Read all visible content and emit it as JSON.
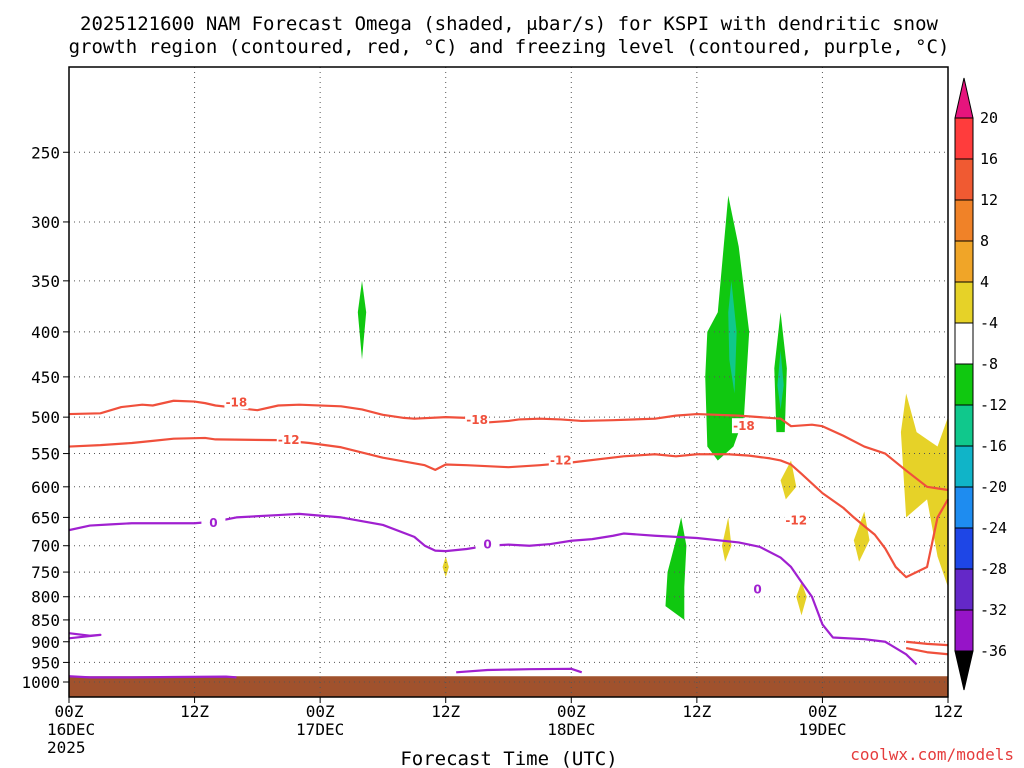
{
  "title": {
    "line1": "2025121600 NAM Forecast Omega (shaded, μbar/s) for KSPI with dendritic snow",
    "line2": "growth region (contoured, red, °C) and freezing level (contoured, purple, °C)"
  },
  "xlabel": "Forecast Time (UTC)",
  "credit": "coolwx.com/models",
  "colors": {
    "dgz": "#f0503c",
    "freezing": "#a020d0",
    "terrain": "#a0522d",
    "grid": "#555555"
  },
  "chart_data": {
    "type": "contour",
    "y_scale": "log-pressure",
    "y_axis": {
      "range": [
        1040,
        200
      ],
      "ticks": [
        "250",
        "300",
        "350",
        "400",
        "450",
        "500",
        "550",
        "600",
        "650",
        "700",
        "750",
        "800",
        "850",
        "900",
        "950",
        "1000"
      ]
    },
    "x_axis": {
      "range": [
        0,
        84
      ],
      "ticks": [
        {
          "label": "00Z",
          "sub": "16DEC",
          "sub2": "2025"
        },
        {
          "label": "12Z",
          "sub": "",
          "sub2": ""
        },
        {
          "label": "00Z",
          "sub": "17DEC",
          "sub2": ""
        },
        {
          "label": "12Z",
          "sub": "",
          "sub2": ""
        },
        {
          "label": "00Z",
          "sub": "18DEC",
          "sub2": ""
        },
        {
          "label": "12Z",
          "sub": "",
          "sub2": ""
        },
        {
          "label": "00Z",
          "sub": "19DEC",
          "sub2": ""
        },
        {
          "label": "12Z",
          "sub": "",
          "sub2": ""
        }
      ]
    },
    "colorbar": {
      "ticks": [
        "20",
        "16",
        "12",
        "8",
        "4",
        "-4",
        "-8",
        "-12",
        "-16",
        "-20",
        "-24",
        "-28",
        "-32",
        "-36"
      ],
      "bins": [
        {
          "color": "#ff3c3c"
        },
        {
          "color": "#f05a32"
        },
        {
          "color": "#f08228"
        },
        {
          "color": "#f0a528"
        },
        {
          "color": "#e6d228"
        },
        {
          "color": "#ffffff"
        },
        {
          "color": "#10c810"
        },
        {
          "color": "#10c88c"
        },
        {
          "color": "#10b4c8"
        },
        {
          "color": "#1e8cf0"
        },
        {
          "color": "#1e46e6"
        },
        {
          "color": "#6428c8"
        },
        {
          "color": "#9614c8"
        },
        {
          "color": "#a0a0a0"
        }
      ],
      "top_arrow": "#e6147d",
      "bottom_arrow": "#000000"
    },
    "contours": [
      {
        "name": "-18",
        "color": "#f0503c",
        "points": [
          [
            0,
            496
          ],
          [
            3,
            495
          ],
          [
            5,
            487
          ],
          [
            7,
            484
          ],
          [
            8,
            485
          ],
          [
            10,
            479
          ],
          [
            12,
            480
          ],
          [
            13,
            482
          ],
          [
            14,
            485
          ],
          [
            18,
            491
          ],
          [
            20,
            485
          ],
          [
            22,
            484
          ],
          [
            26,
            486
          ],
          [
            28,
            490
          ],
          [
            30,
            497
          ],
          [
            32,
            501
          ],
          [
            33,
            502
          ],
          [
            36,
            500
          ],
          [
            38,
            501
          ],
          [
            40,
            507
          ],
          [
            42,
            505
          ],
          [
            43,
            503
          ],
          [
            45,
            502
          ],
          [
            47,
            503
          ],
          [
            49,
            505
          ],
          [
            52,
            504
          ],
          [
            56,
            502
          ],
          [
            58,
            498
          ],
          [
            60,
            496
          ],
          [
            64,
            498
          ],
          [
            66,
            500
          ],
          [
            68,
            502
          ],
          [
            69,
            512
          ],
          [
            71,
            510
          ],
          [
            72,
            512
          ],
          [
            74,
            525
          ],
          [
            76,
            540
          ],
          [
            78,
            550
          ],
          [
            80,
            575
          ],
          [
            82,
            600
          ],
          [
            84,
            605
          ]
        ]
      },
      {
        "name": "-12",
        "color": "#f0503c",
        "points": [
          [
            0,
            540
          ],
          [
            3,
            538
          ],
          [
            6,
            535
          ],
          [
            8,
            532
          ],
          [
            10,
            529
          ],
          [
            13,
            528
          ],
          [
            14,
            530
          ],
          [
            20,
            531
          ],
          [
            23,
            535
          ],
          [
            26,
            541
          ],
          [
            30,
            556
          ],
          [
            34,
            567
          ],
          [
            35,
            574
          ],
          [
            36,
            566
          ],
          [
            38,
            567
          ],
          [
            42,
            570
          ],
          [
            45,
            567
          ],
          [
            48,
            563
          ],
          [
            53,
            554
          ],
          [
            56,
            551
          ],
          [
            58,
            554
          ],
          [
            60,
            551
          ],
          [
            63,
            551
          ],
          [
            65,
            553
          ],
          [
            67,
            557
          ],
          [
            68,
            560
          ],
          [
            69,
            566
          ],
          [
            70,
            580
          ],
          [
            72,
            610
          ],
          [
            74,
            634
          ],
          [
            75,
            650
          ],
          [
            76,
            665
          ],
          [
            77,
            680
          ],
          [
            78,
            705
          ],
          [
            79,
            740
          ],
          [
            80,
            760
          ],
          [
            82,
            740
          ],
          [
            83,
            650
          ],
          [
            84,
            620
          ]
        ]
      },
      {
        "name": "0",
        "color": "#a020d0",
        "points": [
          [
            0,
            672
          ],
          [
            2,
            664
          ],
          [
            4,
            662
          ],
          [
            6,
            660
          ],
          [
            8,
            660
          ],
          [
            12,
            660
          ],
          [
            14,
            657
          ],
          [
            16,
            650
          ],
          [
            20,
            646
          ],
          [
            22,
            644
          ],
          [
            26,
            650
          ],
          [
            30,
            663
          ],
          [
            33,
            684
          ],
          [
            34,
            700
          ],
          [
            35,
            709
          ],
          [
            36,
            710
          ],
          [
            38,
            706
          ],
          [
            40,
            700
          ],
          [
            42,
            698
          ],
          [
            44,
            700
          ],
          [
            46,
            697
          ],
          [
            48,
            691
          ],
          [
            50,
            688
          ],
          [
            52,
            682
          ],
          [
            53,
            678
          ],
          [
            56,
            682
          ],
          [
            60,
            686
          ],
          [
            64,
            694
          ],
          [
            66,
            702
          ],
          [
            68,
            722
          ],
          [
            69,
            740
          ],
          [
            70,
            770
          ],
          [
            71,
            800
          ],
          [
            72,
            860
          ],
          [
            73,
            890
          ],
          [
            76,
            894
          ],
          [
            78,
            900
          ],
          [
            80,
            930
          ],
          [
            81,
            955
          ]
        ]
      },
      {
        "name": "0-lower",
        "color": "#a020d0",
        "points": [
          [
            0,
            880
          ],
          [
            2,
            886
          ],
          [
            3,
            884
          ],
          [
            0,
            892
          ]
        ]
      },
      {
        "name": "0-base-left",
        "color": "#a020d0",
        "points": [
          [
            0,
            985
          ],
          [
            2,
            988
          ],
          [
            6,
            988
          ],
          [
            10,
            987
          ],
          [
            15,
            986
          ],
          [
            16,
            988
          ]
        ]
      },
      {
        "name": "0-base-mid",
        "color": "#a020d0",
        "points": [
          [
            37,
            975
          ],
          [
            40,
            969
          ],
          [
            44,
            967
          ],
          [
            48,
            966
          ],
          [
            49,
            975
          ]
        ]
      },
      {
        "name": "-12-low-right",
        "color": "#f0503c",
        "points": [
          [
            80,
            900
          ],
          [
            82,
            905
          ],
          [
            84,
            908
          ]
        ]
      },
      {
        "name": "-12-low-right2",
        "color": "#f0503c",
        "points": [
          [
            80,
            915
          ],
          [
            82,
            925
          ],
          [
            84,
            930
          ]
        ]
      }
    ],
    "regions": [
      {
        "name": "omega-green-mid",
        "color": "#10c810",
        "points": [
          [
            28,
            350
          ],
          [
            28.4,
            380
          ],
          [
            28,
            430
          ],
          [
            27.6,
            380
          ]
        ]
      },
      {
        "name": "omega-green-main",
        "color": "#10c810",
        "points": [
          [
            63,
            280
          ],
          [
            64,
            320
          ],
          [
            65,
            400
          ],
          [
            64.5,
            500
          ],
          [
            63.5,
            540
          ],
          [
            62,
            560
          ],
          [
            61,
            540
          ],
          [
            60.8,
            450
          ],
          [
            61,
            400
          ],
          [
            62,
            380
          ]
        ]
      },
      {
        "name": "omega-teal-main",
        "color": "#10c88c",
        "points": [
          [
            63.3,
            350
          ],
          [
            63.8,
            400
          ],
          [
            63.6,
            470
          ],
          [
            63.1,
            430
          ],
          [
            63,
            380
          ]
        ]
      },
      {
        "name": "omega-green-right",
        "color": "#10c810",
        "points": [
          [
            68,
            380
          ],
          [
            68.6,
            440
          ],
          [
            68.4,
            520
          ],
          [
            67.6,
            520
          ],
          [
            67.4,
            440
          ]
        ]
      },
      {
        "name": "omega-teal-right",
        "color": "#10c88c",
        "points": [
          [
            68,
            420
          ],
          [
            68.3,
            460
          ],
          [
            68,
            490
          ],
          [
            67.7,
            460
          ]
        ]
      },
      {
        "name": "omega-green-low",
        "color": "#10c810",
        "points": [
          [
            58.5,
            650
          ],
          [
            59,
            700
          ],
          [
            58.8,
            780
          ],
          [
            58.8,
            850
          ],
          [
            57,
            820
          ],
          [
            57.2,
            750
          ],
          [
            58,
            690
          ]
        ]
      },
      {
        "name": "omega-yellow-right",
        "color": "#e6d228",
        "points": [
          [
            80,
            470
          ],
          [
            81,
            520
          ],
          [
            82,
            530
          ],
          [
            83,
            540
          ],
          [
            84,
            500
          ],
          [
            84,
            780
          ],
          [
            83,
            720
          ],
          [
            82,
            620
          ],
          [
            80,
            650
          ],
          [
            79.5,
            520
          ]
        ]
      },
      {
        "name": "omega-yellow-a",
        "color": "#e6d228",
        "points": [
          [
            69,
            560
          ],
          [
            69.5,
            600
          ],
          [
            68.5,
            620
          ],
          [
            68,
            590
          ]
        ]
      },
      {
        "name": "omega-yellow-b",
        "color": "#e6d228",
        "points": [
          [
            76,
            640
          ],
          [
            76.5,
            690
          ],
          [
            75.5,
            730
          ],
          [
            75,
            690
          ]
        ]
      },
      {
        "name": "omega-yellow-c",
        "color": "#e6d228",
        "points": [
          [
            63,
            650
          ],
          [
            63.3,
            700
          ],
          [
            62.7,
            730
          ],
          [
            62.4,
            700
          ]
        ]
      },
      {
        "name": "omega-yellow-d",
        "color": "#e6d228",
        "points": [
          [
            70,
            770
          ],
          [
            70.5,
            800
          ],
          [
            70,
            840
          ],
          [
            69.5,
            800
          ]
        ]
      },
      {
        "name": "omega-yellow-e",
        "color": "#e6d228",
        "points": [
          [
            36,
            720
          ],
          [
            36.3,
            740
          ],
          [
            36,
            760
          ],
          [
            35.7,
            740
          ]
        ]
      }
    ],
    "annotations": [
      {
        "text": "-18",
        "x": 16,
        "y": 481,
        "color": "#f0503c"
      },
      {
        "text": "-12",
        "x": 21,
        "y": 531,
        "color": "#f0503c"
      },
      {
        "text": "-18",
        "x": 39,
        "y": 504,
        "color": "#f0503c"
      },
      {
        "text": "-12",
        "x": 47,
        "y": 560,
        "color": "#f0503c"
      },
      {
        "text": "-18",
        "x": 64.5,
        "y": 512,
        "color": "#f0503c"
      },
      {
        "text": "-12",
        "x": 69.5,
        "y": 655,
        "color": "#f0503c"
      },
      {
        "text": "0",
        "x": 13.8,
        "y": 660,
        "color": "#a020d0"
      },
      {
        "text": "0",
        "x": 40,
        "y": 698,
        "color": "#a020d0"
      },
      {
        "text": "0",
        "x": 65.8,
        "y": 785,
        "color": "#a020d0"
      }
    ],
    "terrain": {
      "top_pressure": 985,
      "bottom_pressure": 1040
    },
    "grid": true,
    "legend": "colorbar-right"
  }
}
